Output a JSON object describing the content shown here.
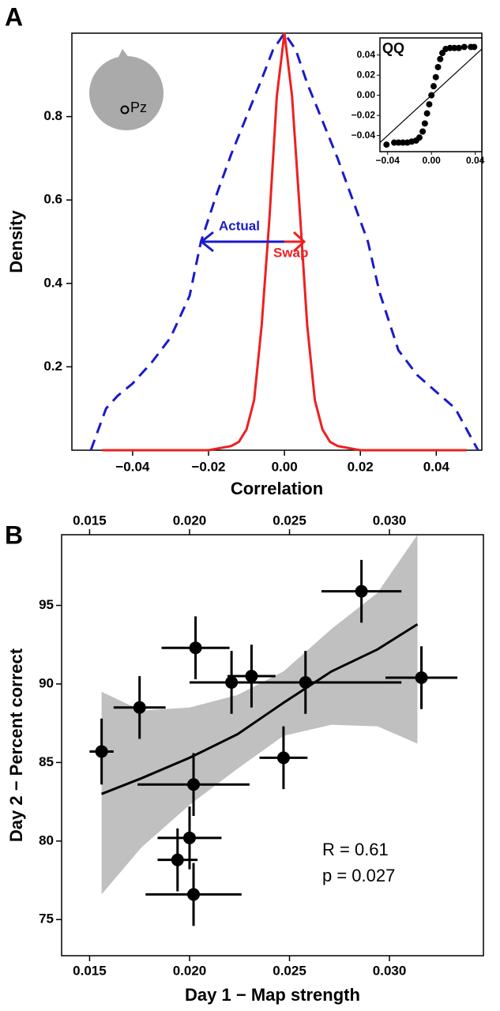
{
  "chart_data": [
    {
      "type": "line",
      "panel_label": "A",
      "x_label": "Correlation",
      "y_label": "Density",
      "electrode": "Pz",
      "xlim": [
        -0.056,
        0.052
      ],
      "ylim": [
        0,
        1.0
      ],
      "xticks": [
        {
          "value": -0.04,
          "label": "−0.04"
        },
        {
          "value": -0.02,
          "label": "−0.02"
        },
        {
          "value": 0,
          "label": "0.00"
        },
        0.02,
        0.04
      ],
      "yticks": [
        0.2,
        0.4,
        0.6,
        0.8
      ],
      "series": [
        {
          "name": "Actual",
          "color": "#1a1acc",
          "linestyle": "dashed",
          "x": [
            -0.051,
            -0.049,
            -0.047,
            -0.044,
            -0.04,
            -0.035,
            -0.03,
            -0.025,
            -0.022,
            -0.018,
            -0.014,
            -0.01,
            -0.006,
            -0.003,
            0,
            0.003,
            0.006,
            0.01,
            0.014,
            0.018,
            0.022,
            0.025,
            0.03,
            0.035,
            0.04,
            0.045,
            0.048,
            0.051
          ],
          "values": [
            0,
            0.05,
            0.1,
            0.13,
            0.16,
            0.21,
            0.27,
            0.37,
            0.5,
            0.61,
            0.71,
            0.8,
            0.89,
            0.96,
            1.0,
            0.96,
            0.88,
            0.79,
            0.7,
            0.6,
            0.5,
            0.38,
            0.24,
            0.18,
            0.14,
            0.1,
            0.05,
            0
          ]
        },
        {
          "name": "Swap",
          "color": "#ee2020",
          "linestyle": "solid",
          "x": [
            -0.048,
            -0.02,
            -0.014,
            -0.012,
            -0.01,
            -0.008,
            -0.006,
            -0.004,
            -0.002,
            0,
            0.002,
            0.004,
            0.006,
            0.008,
            0.01,
            0.012,
            0.014,
            0.02,
            0.048
          ],
          "values": [
            0,
            0,
            0.01,
            0.02,
            0.05,
            0.12,
            0.3,
            0.55,
            0.85,
            1.0,
            0.85,
            0.58,
            0.3,
            0.12,
            0.05,
            0.02,
            0.01,
            0,
            0
          ]
        }
      ]
    },
    {
      "type": "qq",
      "title": "QQ",
      "color": "#000000",
      "xlim": [
        -0.047,
        0.046
      ],
      "ylim": [
        -0.056,
        0.057
      ],
      "xticks": [
        {
          "value": -0.04,
          "label": "−0.04"
        },
        {
          "value": 0,
          "label": "0.00"
        },
        0.04
      ],
      "yticks": [
        0.04,
        0.02,
        {
          "value": 0,
          "label": "0.00"
        },
        {
          "value": -0.02,
          "label": "−0.02"
        },
        {
          "value": -0.04,
          "label": "−0.04"
        }
      ],
      "x": [
        -0.041,
        -0.034,
        -0.03,
        -0.026,
        -0.022,
        -0.018,
        -0.014,
        -0.011,
        -0.008,
        -0.006,
        -0.004,
        -0.002,
        0,
        0.002,
        0.004,
        0.006,
        0.008,
        0.01,
        0.013,
        0.017,
        0.021,
        0.025,
        0.03,
        0.036,
        0.039
      ],
      "values": [
        -0.049,
        -0.047,
        -0.047,
        -0.047,
        -0.047,
        -0.046,
        -0.045,
        -0.042,
        -0.036,
        -0.028,
        -0.018,
        -0.009,
        0,
        0.009,
        0.018,
        0.028,
        0.036,
        0.042,
        0.046,
        0.047,
        0.047,
        0.047,
        0.048,
        0.048,
        0.048
      ]
    },
    {
      "type": "scatter",
      "panel_label": "B",
      "x_label": "Day 1 − Map strength",
      "y_label": "Day 2 − Percent correct",
      "xlim": [
        0.0136,
        0.0347
      ],
      "ylim": [
        72.7,
        99.5
      ],
      "xticks": [
        0.015,
        {
          "value": 0.02,
          "label": "0.020"
        },
        0.025,
        {
          "value": 0.03,
          "label": "0.030"
        }
      ],
      "yticks": [
        95,
        90,
        85,
        80,
        75
      ],
      "color": "#000000",
      "x": [
        0.0156,
        0.0175,
        0.0203,
        0.0221,
        0.0231,
        0.0258,
        0.0286,
        0.0316,
        0.0247,
        0.0202,
        0.02,
        0.0194,
        0.0202
      ],
      "values": [
        85.7,
        88.5,
        92.3,
        90.1,
        90.5,
        90.1,
        95.9,
        90.4,
        85.3,
        83.6,
        80.2,
        78.8,
        76.6
      ],
      "x_errors": [
        0.0006,
        0.0013,
        0.0017,
        0.0021,
        0.0012,
        0.0048,
        0.002,
        0.0018,
        0.0012,
        0.0028,
        0.0016,
        0.001,
        0.0024
      ],
      "errors": [
        2.1,
        2.0,
        2.0,
        2.0,
        2.0,
        2.0,
        2.0,
        2.0,
        2.0,
        2.0,
        2.0,
        2.0,
        2.0
      ],
      "fit": {
        "color": "#000000",
        "band_color": "#c0c0c0",
        "x": [
          0.0156,
          0.0176,
          0.02,
          0.0224,
          0.0247,
          0.0271,
          0.0294,
          0.0314
        ],
        "values": [
          83.0,
          84.0,
          85.3,
          86.8,
          88.8,
          90.8,
          92.2,
          93.8
        ],
        "lower": [
          76.6,
          79.6,
          82.3,
          84.6,
          86.7,
          87.4,
          87.3,
          86.2
        ],
        "upper": [
          89.5,
          88.3,
          88.5,
          89.3,
          90.8,
          93.5,
          95.8,
          99.5
        ]
      },
      "annotations": [
        "R = 0.61",
        "p = 0.027"
      ]
    }
  ]
}
